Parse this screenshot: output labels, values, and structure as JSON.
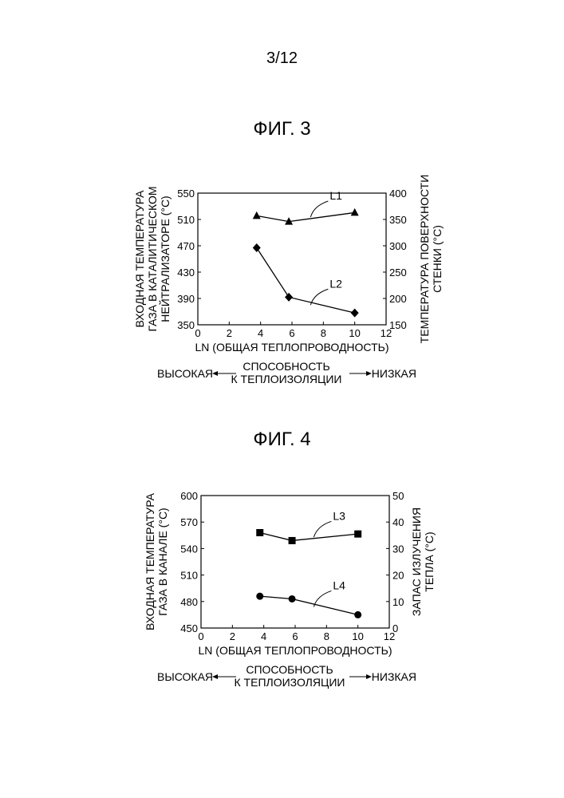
{
  "page_number": "3/12",
  "figures": {
    "fig3": {
      "title": "ФИГ. 3"
    },
    "fig4": {
      "title": "ФИГ. 4"
    }
  },
  "chart_data": [
    {
      "type": "line",
      "title": "ФИГ. 3",
      "xlabel": "LN (ОБЩАЯ ТЕПЛОПРОВОДНОСТЬ)",
      "ylabel_left": [
        "ВХОДНАЯ ТЕМПЕРАТУРА",
        "ГАЗА В КАТАЛИТИЧЕСКОМ",
        "НЕЙТРАЛИЗАТОРЕ (°C)"
      ],
      "ylabel_right": [
        "ТЕМПЕРАТУРА ПОВЕРХНОСТИ",
        "СТЕНКИ (°C)"
      ],
      "xlim": [
        0,
        12
      ],
      "xticks": [
        0,
        2,
        4,
        6,
        8,
        10,
        12
      ],
      "ylim_left": [
        350,
        550
      ],
      "yticks_left": [
        350,
        390,
        430,
        470,
        510,
        550
      ],
      "ylim_right": [
        150,
        400
      ],
      "yticks_right": [
        150,
        200,
        250,
        300,
        350,
        400
      ],
      "grid": false,
      "insulation_scale": {
        "label": [
          "СПОСОБНОСТЬ",
          "К ТЕПЛОИЗОЛЯЦИИ"
        ],
        "high": "ВЫСОКАЯ",
        "low": "НИЗКАЯ"
      },
      "series": [
        {
          "name": "L1",
          "axis": "right",
          "marker": "triangle",
          "x": [
            3.75,
            5.8,
            10
          ],
          "y": [
            357,
            346,
            363
          ]
        },
        {
          "name": "L2",
          "axis": "left",
          "marker": "diamond",
          "x": [
            3.75,
            5.8,
            10
          ],
          "y": [
            467,
            392,
            368
          ]
        }
      ]
    },
    {
      "type": "line",
      "title": "ФИГ. 4",
      "xlabel": "LN (ОБЩАЯ ТЕПЛОПРОВОДНОСТЬ)",
      "ylabel_left": [
        "ВХОДНАЯ ТЕМПЕРАТУРА",
        "ГАЗА В КАНАЛЕ  (°C)"
      ],
      "ylabel_right": [
        "ЗАПАС ИЗЛУЧЕНИЯ",
        "ТЕПЛА   (°C)"
      ],
      "xlim": [
        0,
        12
      ],
      "xticks": [
        0,
        2,
        4,
        6,
        8,
        10,
        12
      ],
      "ylim_left": [
        450,
        600
      ],
      "yticks_left": [
        450,
        480,
        510,
        540,
        570,
        600
      ],
      "ylim_right": [
        0,
        50
      ],
      "yticks_right": [
        0,
        10,
        20,
        30,
        40,
        50
      ],
      "grid": false,
      "insulation_scale": {
        "label": [
          "СПОСОБНОСТЬ",
          "К ТЕПЛОИЗОЛЯЦИИ"
        ],
        "high": "ВЫСОКАЯ",
        "low": "НИЗКАЯ"
      },
      "series": [
        {
          "name": "L3",
          "axis": "right",
          "marker": "square",
          "x": [
            3.75,
            5.8,
            10
          ],
          "y": [
            36,
            33,
            35.5
          ]
        },
        {
          "name": "L4",
          "axis": "right",
          "marker": "circle",
          "x": [
            3.75,
            5.8,
            10
          ],
          "y": [
            12,
            11,
            5
          ]
        }
      ]
    }
  ]
}
